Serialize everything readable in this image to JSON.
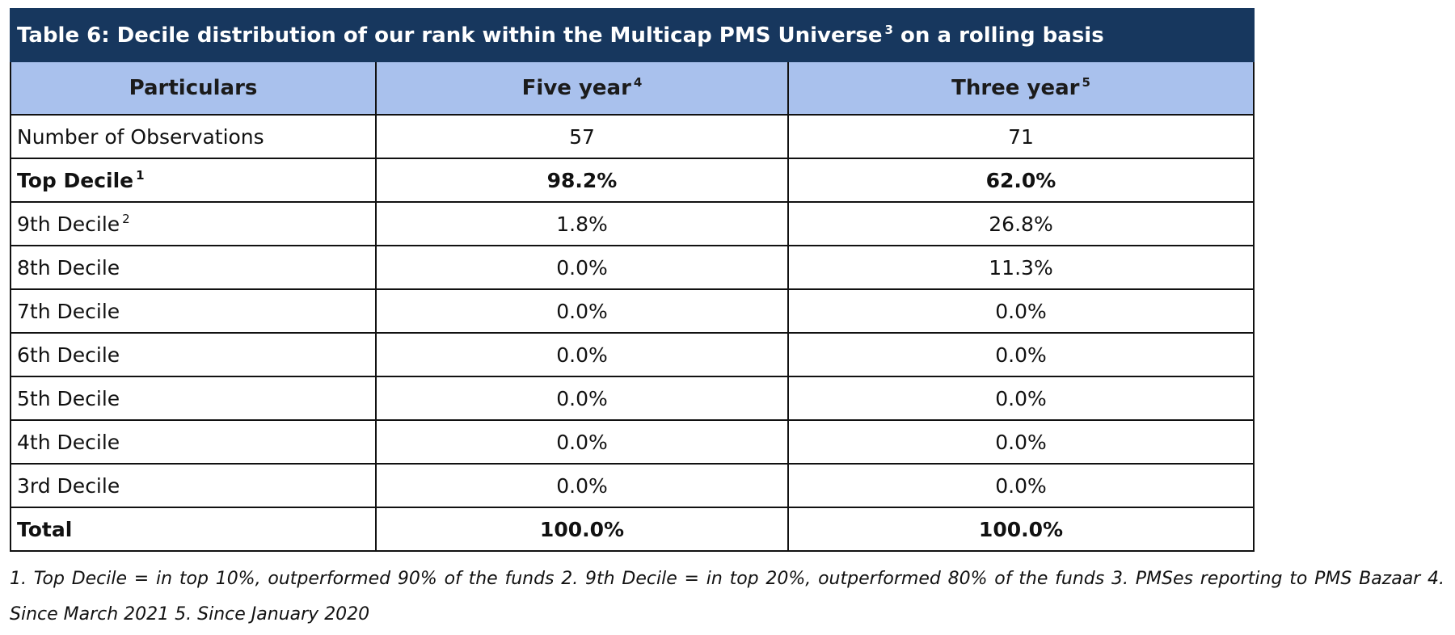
{
  "table": {
    "title": "Table 6: Decile distribution of our rank within the Multicap PMS Universe",
    "title_sup": "3",
    "title_suffix": "on a rolling basis",
    "columns": [
      {
        "label": "Particulars",
        "sup": ""
      },
      {
        "label": "Five year",
        "sup": "4"
      },
      {
        "label": "Three year",
        "sup": "5"
      }
    ],
    "rows": [
      {
        "label": "Number of Observations",
        "sup": "",
        "five_year": "57",
        "three_year": "71",
        "bold": false
      },
      {
        "label": "Top Decile",
        "sup": "1",
        "five_year": "98.2%",
        "three_year": "62.0%",
        "bold": true
      },
      {
        "label": "9th Decile",
        "sup": "2",
        "five_year": "1.8%",
        "three_year": "26.8%",
        "bold": false
      },
      {
        "label": "8th Decile",
        "sup": "",
        "five_year": "0.0%",
        "three_year": "11.3%",
        "bold": false
      },
      {
        "label": "7th Decile",
        "sup": "",
        "five_year": "0.0%",
        "three_year": "0.0%",
        "bold": false
      },
      {
        "label": "6th Decile",
        "sup": "",
        "five_year": "0.0%",
        "three_year": "0.0%",
        "bold": false
      },
      {
        "label": "5th Decile",
        "sup": "",
        "five_year": "0.0%",
        "three_year": "0.0%",
        "bold": false
      },
      {
        "label": "4th Decile",
        "sup": "",
        "five_year": "0.0%",
        "three_year": "0.0%",
        "bold": false
      },
      {
        "label": "3rd Decile",
        "sup": "",
        "five_year": "0.0%",
        "three_year": "0.0%",
        "bold": false
      },
      {
        "label": "Total",
        "sup": "",
        "five_year": "100.0%",
        "three_year": "100.0%",
        "bold": true
      }
    ]
  },
  "footnote": "1. Top Decile = in top 10%, outperformed 90% of the funds 2. 9th Decile = in top 20%, outperformed 80% of the funds 3. PMSes reporting to PMS Bazaar 4. Since March 2021 5. Since January 2020",
  "colors": {
    "title_bg": "#17375e",
    "header_bg": "#a9c1ed",
    "border": "#111111"
  }
}
